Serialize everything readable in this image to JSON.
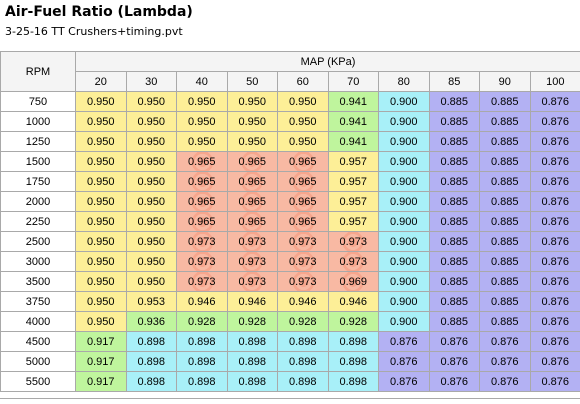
{
  "title": "Air-Fuel Ratio (Lambda)",
  "subtitle": "3-25-16 TT Crushers+timing.pvt",
  "table": {
    "row_header_label": "RPM",
    "column_group_label": "MAP (KPa)",
    "columns": [
      "20",
      "30",
      "40",
      "50",
      "60",
      "70",
      "80",
      "85",
      "90",
      "100"
    ],
    "rows": [
      {
        "rpm": "750",
        "values": [
          "0.950",
          "0.950",
          "0.950",
          "0.950",
          "0.950",
          "0.941",
          "0.900",
          "0.885",
          "0.885",
          "0.876"
        ],
        "tones": [
          "y",
          "y",
          "y",
          "y",
          "y",
          "g",
          "c",
          "b",
          "b",
          "b"
        ]
      },
      {
        "rpm": "1000",
        "values": [
          "0.950",
          "0.950",
          "0.950",
          "0.950",
          "0.950",
          "0.941",
          "0.900",
          "0.885",
          "0.885",
          "0.876"
        ],
        "tones": [
          "y",
          "y",
          "y",
          "y",
          "y",
          "g",
          "c",
          "b",
          "b",
          "b"
        ]
      },
      {
        "rpm": "1250",
        "values": [
          "0.950",
          "0.950",
          "0.950",
          "0.950",
          "0.950",
          "0.941",
          "0.900",
          "0.885",
          "0.885",
          "0.876"
        ],
        "tones": [
          "y",
          "y",
          "y",
          "y",
          "y",
          "g",
          "c",
          "b",
          "b",
          "b"
        ]
      },
      {
        "rpm": "1500",
        "values": [
          "0.950",
          "0.950",
          "0.965",
          "0.965",
          "0.965",
          "0.957",
          "0.900",
          "0.885",
          "0.885",
          "0.876"
        ],
        "tones": [
          "y",
          "y",
          "r",
          "r",
          "r",
          "y",
          "c",
          "b",
          "b",
          "b"
        ]
      },
      {
        "rpm": "1750",
        "values": [
          "0.950",
          "0.950",
          "0.965",
          "0.965",
          "0.965",
          "0.957",
          "0.900",
          "0.885",
          "0.885",
          "0.876"
        ],
        "tones": [
          "y",
          "y",
          "r",
          "r",
          "r",
          "y",
          "c",
          "b",
          "b",
          "b"
        ]
      },
      {
        "rpm": "2000",
        "values": [
          "0.950",
          "0.950",
          "0.965",
          "0.965",
          "0.965",
          "0.957",
          "0.900",
          "0.885",
          "0.885",
          "0.876"
        ],
        "tones": [
          "y",
          "y",
          "r",
          "r",
          "r",
          "y",
          "c",
          "b",
          "b",
          "b"
        ]
      },
      {
        "rpm": "2250",
        "values": [
          "0.950",
          "0.950",
          "0.965",
          "0.965",
          "0.965",
          "0.957",
          "0.900",
          "0.885",
          "0.885",
          "0.876"
        ],
        "tones": [
          "y",
          "y",
          "r",
          "r",
          "r",
          "y",
          "c",
          "b",
          "b",
          "b"
        ]
      },
      {
        "rpm": "2500",
        "values": [
          "0.950",
          "0.950",
          "0.973",
          "0.973",
          "0.973",
          "0.973",
          "0.900",
          "0.885",
          "0.885",
          "0.876"
        ],
        "tones": [
          "y",
          "y",
          "r",
          "r",
          "r",
          "r",
          "c",
          "b",
          "b",
          "b"
        ]
      },
      {
        "rpm": "3000",
        "values": [
          "0.950",
          "0.950",
          "0.973",
          "0.973",
          "0.973",
          "0.973",
          "0.900",
          "0.885",
          "0.885",
          "0.876"
        ],
        "tones": [
          "y",
          "y",
          "r",
          "r",
          "r",
          "r",
          "c",
          "b",
          "b",
          "b"
        ]
      },
      {
        "rpm": "3500",
        "values": [
          "0.950",
          "0.950",
          "0.973",
          "0.973",
          "0.973",
          "0.969",
          "0.900",
          "0.885",
          "0.885",
          "0.876"
        ],
        "tones": [
          "y",
          "y",
          "r",
          "r",
          "r",
          "r",
          "c",
          "b",
          "b",
          "b"
        ]
      },
      {
        "rpm": "3750",
        "values": [
          "0.950",
          "0.953",
          "0.946",
          "0.946",
          "0.946",
          "0.946",
          "0.900",
          "0.885",
          "0.885",
          "0.876"
        ],
        "tones": [
          "y",
          "y",
          "y",
          "y",
          "y",
          "y",
          "c",
          "b",
          "b",
          "b"
        ]
      },
      {
        "rpm": "4000",
        "values": [
          "0.950",
          "0.936",
          "0.928",
          "0.928",
          "0.928",
          "0.928",
          "0.900",
          "0.885",
          "0.885",
          "0.876"
        ],
        "tones": [
          "y",
          "g",
          "g",
          "g",
          "g",
          "g",
          "c",
          "b",
          "b",
          "b"
        ]
      },
      {
        "rpm": "4500",
        "values": [
          "0.917",
          "0.898",
          "0.898",
          "0.898",
          "0.898",
          "0.898",
          "0.876",
          "0.876",
          "0.876",
          "0.876"
        ],
        "tones": [
          "g",
          "c",
          "c",
          "c",
          "c",
          "c",
          "b",
          "b",
          "b",
          "b"
        ]
      },
      {
        "rpm": "5000",
        "values": [
          "0.917",
          "0.898",
          "0.898",
          "0.898",
          "0.898",
          "0.898",
          "0.876",
          "0.876",
          "0.876",
          "0.876"
        ],
        "tones": [
          "g",
          "c",
          "c",
          "c",
          "c",
          "c",
          "b",
          "b",
          "b",
          "b"
        ]
      },
      {
        "rpm": "5500",
        "values": [
          "0.917",
          "0.898",
          "0.898",
          "0.898",
          "0.898",
          "0.898",
          "0.876",
          "0.876",
          "0.876",
          "0.876"
        ],
        "tones": [
          "g",
          "c",
          "c",
          "c",
          "c",
          "c",
          "b",
          "b",
          "b",
          "b"
        ]
      }
    ]
  },
  "colors": {
    "yellow": "#fdef97",
    "green": "#bff59d",
    "cyan": "#a8f0f8",
    "blue": "#b3b1f3",
    "red": "#f8b9a3"
  }
}
